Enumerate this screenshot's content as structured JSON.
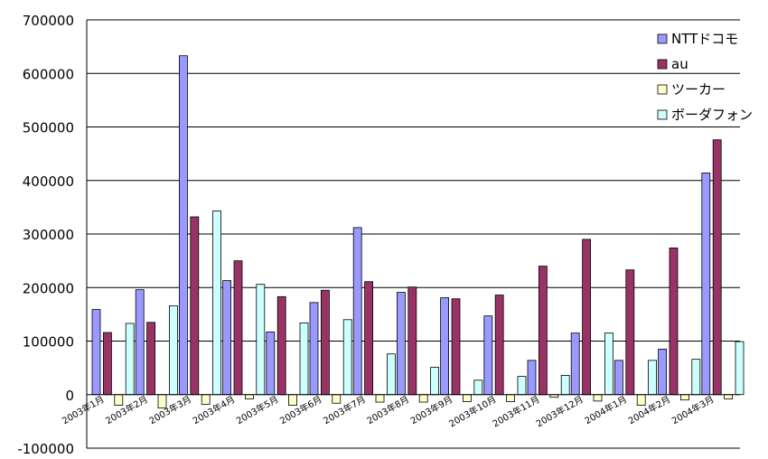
{
  "chart_data": {
    "type": "bar",
    "title": "",
    "xlabel": "",
    "ylabel": "",
    "ylim": [
      -100000,
      700000
    ],
    "yticks": [
      -100000,
      0,
      100000,
      200000,
      300000,
      400000,
      500000,
      600000,
      700000
    ],
    "grid": "horizontal",
    "legend_position": "top-right",
    "categories": [
      "2003年1月",
      "2003年2月",
      "2003年3月",
      "2003年4月",
      "2003年5月",
      "2003年6月",
      "2003年7月",
      "2003年8月",
      "2003年9月",
      "2003年10月",
      "2003年11月",
      "2003年12月",
      "2004年1月",
      "2004年2月",
      "2004年3月"
    ],
    "series": [
      {
        "name": "NTTドコモ",
        "color": "#9999ff",
        "values": [
          159000,
          196000,
          633000,
          213000,
          117000,
          172000,
          312000,
          191000,
          181000,
          147000,
          64000,
          115000,
          64000,
          85000,
          414000
        ]
      },
      {
        "name": "au",
        "color": "#993366",
        "values": [
          116000,
          135000,
          332000,
          250000,
          183000,
          195000,
          211000,
          201000,
          179000,
          186000,
          240000,
          290000,
          233000,
          274000,
          476000
        ]
      },
      {
        "name": "ツーカー",
        "color": "#ffffcc",
        "values": [
          -20000,
          -25000,
          -18000,
          -8000,
          -20000,
          -16000,
          -14000,
          -14000,
          -13000,
          -13000,
          -5000,
          -12000,
          -20000,
          -10000,
          -8000
        ]
      },
      {
        "name": "ボーダフォン",
        "color": "#ccffff",
        "values": [
          133000,
          166000,
          343000,
          206000,
          134000,
          140000,
          76000,
          51000,
          27000,
          34000,
          36000,
          115000,
          64000,
          66000,
          99000
        ]
      }
    ]
  }
}
